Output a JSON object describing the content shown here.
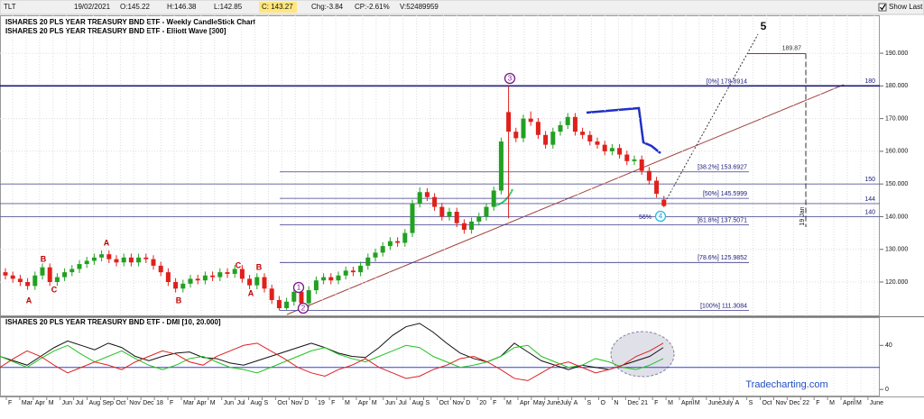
{
  "header": {
    "symbol": "TLT",
    "date": "19/02/2021",
    "open": "O:145.22",
    "high": "H:146.38",
    "low": "L:142.85",
    "close": "C: 143.27",
    "change": "Chg:-3.84",
    "change_pct": "CP:-2.61%",
    "volume": "V:52489959",
    "show_last": "Show Last"
  },
  "watermark": "Tradecharting.com",
  "chart_data": [
    {
      "type": "candlestick",
      "title": "ISHARES 20 PLS YEAR TREASURY BND ETF - Weekly CandleStick Chart",
      "subtitle": "ISHARES 20 PLS YEAR TREASURY BND ETF - Elliott Wave [300]",
      "up_color": "#22a022",
      "down_color": "#e0201b",
      "open": [
        123,
        122,
        121,
        120,
        118.8,
        122,
        124.5,
        120,
        121.5,
        123,
        124,
        125.5,
        126.5,
        127.5,
        128.5,
        127,
        126,
        127.5,
        126,
        127.5,
        127,
        125,
        123,
        120,
        118,
        119.5,
        121,
        120.5,
        122,
        121.5,
        123,
        122.5,
        124,
        121,
        119,
        121.5,
        118,
        114.5,
        112,
        114,
        117,
        113.5,
        117.5,
        120.5,
        121.5,
        120.5,
        122,
        123.5,
        123,
        125,
        127.5,
        129,
        131,
        132.5,
        132,
        135,
        144,
        147.5,
        146,
        143,
        140,
        141.5,
        138,
        136,
        138.5,
        140,
        143,
        148,
        172,
        166,
        164,
        170,
        169,
        165,
        162,
        166,
        168,
        170.5,
        166,
        165,
        163,
        162,
        160,
        161,
        159,
        157,
        157.5,
        154,
        151,
        145.22
      ],
      "high": [
        124.2,
        123.2,
        122.2,
        121.2,
        123.2,
        125.7,
        125.7,
        122.7,
        124.2,
        125.2,
        126.7,
        127.7,
        128.7,
        129.7,
        129.7,
        128.2,
        128.7,
        128.7,
        128.7,
        128.7,
        128.2,
        126.2,
        124.2,
        121.2,
        120.7,
        122.2,
        122.2,
        123.2,
        123.2,
        124.2,
        124.2,
        125.2,
        125.2,
        122.2,
        122.7,
        122.7,
        119.2,
        115.7,
        115.2,
        118.2,
        118.2,
        118.7,
        121.7,
        122.7,
        122.7,
        123.2,
        124.7,
        124.7,
        126.2,
        128.7,
        130.2,
        132.2,
        133.7,
        133.7,
        136.2,
        145.2,
        149,
        148.7,
        147.2,
        144.2,
        142.7,
        142.7,
        139.2,
        139.7,
        141.2,
        144.2,
        149.2,
        164.2,
        179.89,
        167.2,
        171.2,
        172.2,
        170.2,
        166.2,
        167.2,
        169.2,
        171.7,
        171.7,
        167.2,
        166.2,
        164.2,
        163.2,
        162.2,
        162.2,
        160.2,
        158.7,
        158.7,
        155.2,
        152.2,
        146.38
      ],
      "low": [
        120.8,
        119.8,
        118.8,
        117.6,
        117.6,
        120.8,
        118.8,
        118.8,
        120.3,
        121.8,
        122.8,
        124.3,
        125.3,
        126.3,
        125.8,
        124.8,
        124.8,
        124.8,
        124.8,
        125.8,
        123.8,
        121.8,
        118.8,
        116.8,
        116.8,
        118.3,
        119.3,
        119.3,
        120.3,
        120.3,
        121.3,
        121.3,
        119.8,
        117.8,
        117.8,
        116.8,
        113.3,
        111.3,
        111.5,
        112.8,
        112.3,
        112.3,
        116.3,
        119.3,
        119.3,
        119.3,
        120.8,
        121.8,
        121.8,
        123.8,
        126.3,
        127.8,
        129.8,
        130.8,
        130.8,
        133.8,
        142.8,
        144.8,
        141.8,
        138.8,
        138.8,
        136.8,
        134.8,
        134.8,
        137.3,
        138.8,
        141.8,
        146.8,
        139.5,
        162.8,
        162.8,
        167.8,
        163.8,
        160.8,
        160.8,
        164.8,
        166.8,
        164.8,
        163.8,
        161.8,
        160.8,
        158.8,
        158.8,
        157.8,
        155.8,
        155.8,
        152.8,
        149.8,
        145.8,
        142.85
      ],
      "close": [
        122,
        121,
        120,
        118.8,
        122,
        124.5,
        120,
        121.5,
        123,
        124,
        125.5,
        126.5,
        127.5,
        128.5,
        127,
        126,
        127.5,
        126,
        127.5,
        127,
        125,
        123,
        120,
        118,
        119.5,
        121,
        120.5,
        122,
        121.5,
        123,
        122.5,
        124,
        121,
        119,
        121.5,
        118,
        114.5,
        112,
        114,
        117,
        113.5,
        117.5,
        120.5,
        121.5,
        120.5,
        122,
        123.5,
        123,
        125,
        127.5,
        129,
        131,
        132.5,
        132,
        135,
        144,
        147.5,
        146,
        143,
        140,
        141.5,
        138,
        136,
        138.5,
        140,
        143,
        148,
        163,
        166,
        164,
        170,
        169,
        165,
        162,
        166,
        168,
        170.5,
        166,
        165,
        163,
        162,
        160,
        161,
        159,
        157,
        157.5,
        154,
        151,
        147,
        143.27
      ],
      "ylim": [
        109.8,
        201.6
      ],
      "yticks": [
        {
          "value": 120,
          "label": "120.000"
        },
        {
          "value": 130,
          "label": "130.000"
        },
        {
          "value": 140,
          "label": "140.000"
        },
        {
          "value": 150,
          "label": "150.000"
        },
        {
          "value": 160,
          "label": "160.000"
        },
        {
          "value": 170,
          "label": "170.000"
        },
        {
          "value": 180,
          "label": "180.000"
        },
        {
          "value": 190,
          "label": "190.000"
        }
      ],
      "grid": true,
      "levels": [
        180,
        150,
        144,
        140
      ],
      "fib_levels": [
        {
          "value": 179.8914,
          "label": "[0%] 179.8914"
        },
        {
          "value": 153.6927,
          "label": "[38.2%] 153.6927"
        },
        {
          "value": 145.5999,
          "label": "[50%] 145.5999"
        },
        {
          "value": 137.5071,
          "label": "[61.8%] 137.5071"
        },
        {
          "value": 125.9852,
          "label": "[78.6%] 125.9852"
        },
        {
          "value": 111.3084,
          "label": "[100%] 111.3084"
        }
      ],
      "target": 189.87,
      "date_marker": "19 Jan",
      "wave_letters": [
        "A",
        "B",
        "C",
        "A",
        "B",
        "C",
        "B",
        "A"
      ],
      "wave_counts": [
        "1",
        "2",
        "3",
        "4",
        "5"
      ],
      "retrace_note": "56%",
      "month_labels": [
        "F",
        "Mar",
        "Apr",
        "M",
        "Jun",
        "Jul",
        "Aug",
        "Sep",
        "Oct",
        "Nov",
        "Dec",
        "18",
        "F",
        "Mar",
        "Apr",
        "M",
        "Jun",
        "Jul",
        "Aug",
        "S",
        "Oct",
        "Nov",
        "D",
        "19",
        "F",
        "M",
        "Apr",
        "M",
        "Jun",
        "Jul",
        "Aug",
        "S",
        "Oct",
        "Nov",
        "D",
        "20",
        "F",
        "M",
        "Apr",
        "May",
        "June",
        "July",
        "A",
        "S",
        "O",
        "N",
        "Dec",
        "21",
        "F",
        "M",
        "April",
        "M",
        "June",
        "July",
        "A",
        "S",
        "Oct",
        "Nov",
        "Dec",
        "22",
        "F",
        "M",
        "April",
        "M",
        "June"
      ]
    },
    {
      "type": "line",
      "title": "ISHARES 20 PLS YEAR TREASURY BND ETF - DMI [10, 20.000]",
      "ylim": [
        -5.6,
        64.8
      ],
      "yticks": [
        0,
        40
      ],
      "ref_line": 20,
      "series": [
        {
          "color": "#111111",
          "values": [
            30,
            26,
            22,
            30,
            38,
            44,
            40,
            36,
            42,
            38,
            30,
            26,
            30,
            33,
            34,
            29,
            28,
            24,
            22,
            26,
            30,
            34,
            38,
            42,
            38,
            33,
            30,
            29,
            38,
            49,
            57,
            60,
            52,
            42,
            33,
            28,
            25,
            30,
            42,
            34,
            26,
            22,
            18,
            22,
            20,
            18,
            22,
            26,
            30,
            38
          ]
        },
        {
          "color": "#22c322",
          "values": [
            30,
            25,
            20,
            28,
            35,
            40,
            32,
            25,
            30,
            35,
            28,
            22,
            18,
            22,
            28,
            30,
            25,
            20,
            18,
            15,
            20,
            25,
            30,
            35,
            38,
            32,
            28,
            25,
            30,
            35,
            40,
            38,
            30,
            25,
            20,
            22,
            25,
            30,
            38,
            40,
            30,
            25,
            20,
            22,
            28,
            25,
            20,
            18,
            22,
            28
          ]
        },
        {
          "color": "#e02020",
          "values": [
            20,
            28,
            35,
            30,
            22,
            15,
            20,
            25,
            22,
            18,
            25,
            30,
            35,
            32,
            25,
            22,
            30,
            35,
            40,
            42,
            35,
            28,
            20,
            15,
            12,
            18,
            22,
            28,
            20,
            15,
            10,
            12,
            18,
            22,
            28,
            30,
            25,
            18,
            10,
            8,
            15,
            22,
            25,
            20,
            15,
            18,
            22,
            30,
            35,
            42
          ]
        }
      ]
    }
  ]
}
